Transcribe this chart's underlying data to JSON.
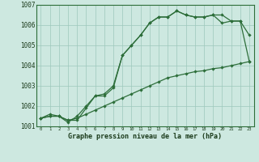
{
  "title": "Graphe pression niveau de la mer (hPa)",
  "xlabel_ticks": [
    0,
    1,
    2,
    3,
    4,
    5,
    6,
    7,
    8,
    9,
    10,
    11,
    12,
    13,
    14,
    15,
    16,
    17,
    18,
    19,
    20,
    21,
    22,
    23
  ],
  "ylim": [
    1001,
    1007
  ],
  "xlim": [
    0,
    23
  ],
  "yticks": [
    1001,
    1002,
    1003,
    1004,
    1005,
    1006,
    1007
  ],
  "background_color": "#cde8e0",
  "grid_color": "#9dc8bc",
  "line_color": "#2d6e3a",
  "line1_y": [
    1001.4,
    1001.6,
    1001.5,
    1001.2,
    1001.5,
    1002.0,
    1002.5,
    1002.6,
    1003.0,
    1004.5,
    1005.0,
    1005.5,
    1006.1,
    1006.4,
    1006.4,
    1006.7,
    1006.5,
    1006.4,
    1006.4,
    1006.5,
    1006.5,
    1006.2,
    1006.2,
    1005.5
  ],
  "line2_y": [
    1001.4,
    1001.5,
    1001.5,
    1001.3,
    1001.3,
    1001.9,
    1002.5,
    1002.5,
    1002.9,
    1004.5,
    1005.0,
    1005.5,
    1006.1,
    1006.4,
    1006.4,
    1006.7,
    1006.5,
    1006.4,
    1006.4,
    1006.5,
    1006.1,
    1006.2,
    1006.2,
    1004.2
  ],
  "line3_y": [
    1001.4,
    1001.5,
    1001.5,
    1001.3,
    1001.4,
    1001.6,
    1001.8,
    1002.0,
    1002.2,
    1002.4,
    1002.6,
    1002.8,
    1003.0,
    1003.2,
    1003.4,
    1003.5,
    1003.6,
    1003.7,
    1003.75,
    1003.85,
    1003.9,
    1004.0,
    1004.1,
    1004.2
  ]
}
